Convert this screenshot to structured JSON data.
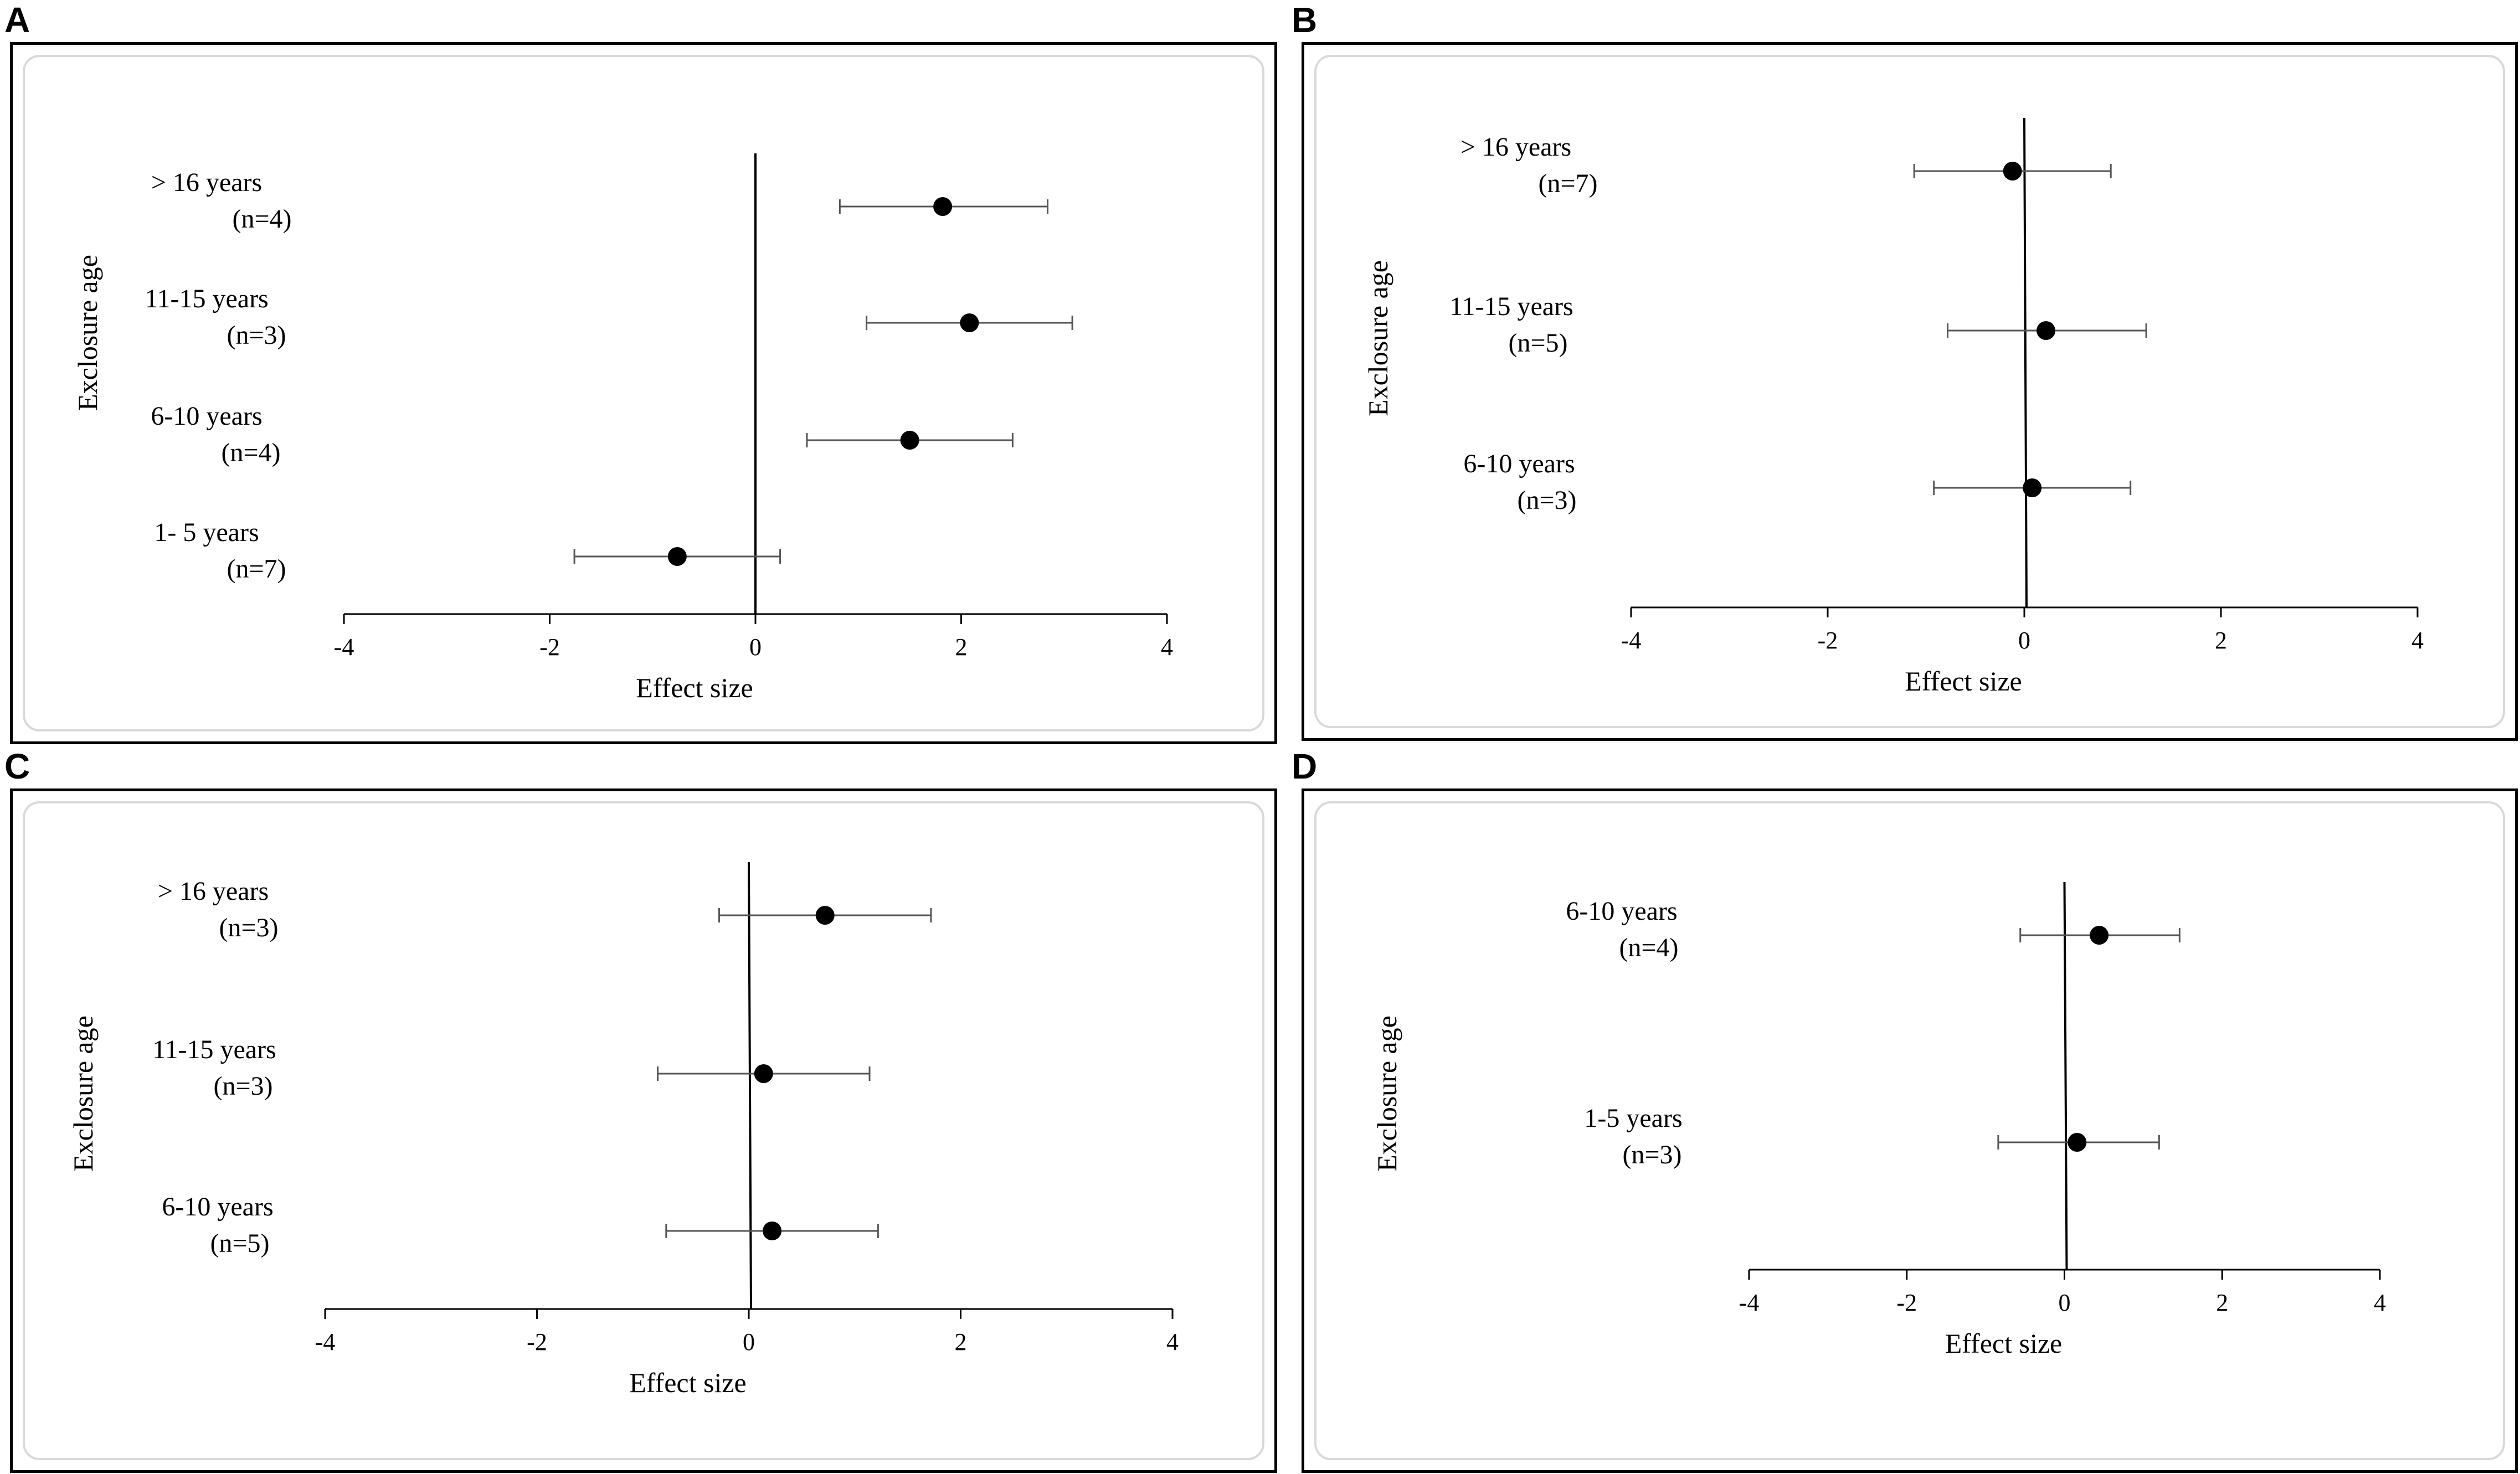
{
  "figure": {
    "panels": [
      {
        "letter": "A"
      },
      {
        "letter": "B"
      },
      {
        "letter": "C"
      },
      {
        "letter": "D"
      }
    ]
  },
  "chart_data": [
    {
      "panel": "A",
      "type": "scatter",
      "subtype": "forest",
      "ylabel": "Exclosure age",
      "xlabel": "Effect size",
      "xlim": [
        -4,
        4
      ],
      "xticks": [
        -4,
        -2,
        0,
        2,
        4
      ],
      "rows": [
        {
          "label": "> 16 years",
          "n": "(n=4)",
          "est": 1.82,
          "lo": 0.82,
          "hi": 2.84
        },
        {
          "label": "11-15 years",
          "n": "(n=3)",
          "est": 2.08,
          "lo": 1.08,
          "hi": 3.08
        },
        {
          "label": "6-10 years",
          "n": "(n=4)",
          "est": 1.5,
          "lo": 0.5,
          "hi": 2.5
        },
        {
          "label": "1- 5 years",
          "n": "(n=7)",
          "est": -0.76,
          "lo": -1.76,
          "hi": 0.24
        }
      ]
    },
    {
      "panel": "B",
      "type": "scatter",
      "subtype": "forest",
      "ylabel": "Exclosure age",
      "xlabel": "Effect size",
      "xlim": [
        -4,
        4
      ],
      "xticks": [
        -4,
        -2,
        0,
        2,
        4
      ],
      "rows": [
        {
          "label": "> 16 years",
          "n": "(n=7)",
          "est": -0.12,
          "lo": -1.12,
          "hi": 0.88
        },
        {
          "label": "11-15 years",
          "n": "(n=5)",
          "est": 0.22,
          "lo": -0.78,
          "hi": 1.24
        },
        {
          "label": "6-10 years",
          "n": "(n=3)",
          "est": 0.08,
          "lo": -0.92,
          "hi": 1.08
        }
      ]
    },
    {
      "panel": "C",
      "type": "scatter",
      "subtype": "forest",
      "ylabel": "Exclosure age",
      "xlabel": "Effect size",
      "xlim": [
        -4,
        4
      ],
      "xticks": [
        -4,
        -2,
        0,
        2,
        4
      ],
      "rows": [
        {
          "label": "> 16 years",
          "n": "(n=3)",
          "est": 0.72,
          "lo": -0.28,
          "hi": 1.72
        },
        {
          "label": "11-15 years",
          "n": "(n=3)",
          "est": 0.14,
          "lo": -0.86,
          "hi": 1.14
        },
        {
          "label": "6-10 years",
          "n": "(n=5)",
          "est": 0.22,
          "lo": -0.78,
          "hi": 1.22
        }
      ]
    },
    {
      "panel": "D",
      "type": "scatter",
      "subtype": "forest",
      "ylabel": "Exclosure age",
      "xlabel": "Effect size",
      "xlim": [
        -4,
        4
      ],
      "xticks": [
        -4,
        -2,
        0,
        2,
        4
      ],
      "rows": [
        {
          "label": "6-10 years",
          "n": "(n=4)",
          "est": 0.44,
          "lo": -0.56,
          "hi": 1.46
        },
        {
          "label": "1-5 years",
          "n": "(n=3)",
          "est": 0.16,
          "lo": -0.84,
          "hi": 1.2
        }
      ]
    }
  ]
}
